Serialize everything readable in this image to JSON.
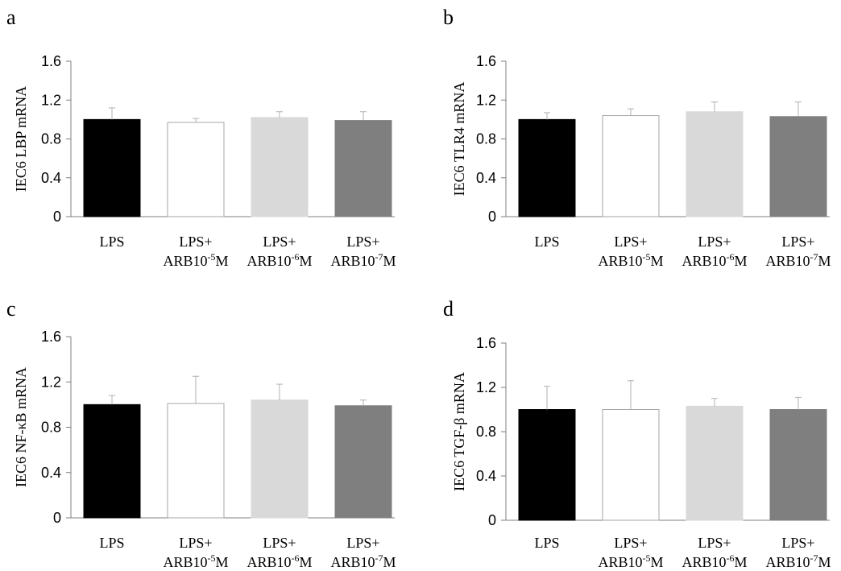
{
  "chart_data": [
    {
      "panel": "a",
      "type": "bar",
      "ylabel": "IEC6 LBP mRNA",
      "ylim": [
        0,
        1.6
      ],
      "yticks": [
        "0",
        "0.4",
        "0.8",
        "1.2",
        "1.6"
      ],
      "categories": [
        {
          "line1": "LPS",
          "line2": "",
          "sup": "",
          "tail": ""
        },
        {
          "line1": "LPS+",
          "line2": "ARB10",
          "sup": "-5",
          "tail": "M"
        },
        {
          "line1": "LPS+",
          "line2": "ARB10",
          "sup": "-6",
          "tail": "M"
        },
        {
          "line1": "LPS+",
          "line2": "ARB10",
          "sup": "-7",
          "tail": "M"
        }
      ],
      "values": [
        1.0,
        0.97,
        1.02,
        0.99
      ],
      "errors": [
        0.12,
        0.04,
        0.06,
        0.09
      ],
      "colors": [
        "#000000",
        "#ffffff",
        "#d9d9d9",
        "#7f7f7f"
      ]
    },
    {
      "panel": "b",
      "type": "bar",
      "ylabel": "IEC6 TLR4 mRNA",
      "ylim": [
        0,
        1.6
      ],
      "yticks": [
        "0",
        "0.4",
        "0.8",
        "1.2",
        "1.6"
      ],
      "categories": [
        {
          "line1": "LPS",
          "line2": "",
          "sup": "",
          "tail": ""
        },
        {
          "line1": "LPS+",
          "line2": "ARB10",
          "sup": "-5",
          "tail": "M"
        },
        {
          "line1": "LPS+",
          "line2": "ARB10",
          "sup": "-6",
          "tail": "M"
        },
        {
          "line1": "LPS+",
          "line2": "ARB10",
          "sup": "-7",
          "tail": "M"
        }
      ],
      "values": [
        1.0,
        1.04,
        1.08,
        1.03
      ],
      "errors": [
        0.07,
        0.07,
        0.1,
        0.15
      ],
      "colors": [
        "#000000",
        "#ffffff",
        "#d9d9d9",
        "#7f7f7f"
      ]
    },
    {
      "panel": "c",
      "type": "bar",
      "ylabel": "IEC6 NF-κB mRNA",
      "ylim": [
        0,
        1.6
      ],
      "yticks": [
        "0",
        "0.4",
        "0.8",
        "1.2",
        "1.6"
      ],
      "categories": [
        {
          "line1": "LPS",
          "line2": "",
          "sup": "",
          "tail": ""
        },
        {
          "line1": "LPS+",
          "line2": "ARB10",
          "sup": "-5",
          "tail": "M"
        },
        {
          "line1": "LPS+",
          "line2": "ARB10",
          "sup": "-6",
          "tail": "M"
        },
        {
          "line1": "LPS+",
          "line2": "ARB10",
          "sup": "-7",
          "tail": "M"
        }
      ],
      "values": [
        1.0,
        1.01,
        1.04,
        0.99
      ],
      "errors": [
        0.08,
        0.24,
        0.14,
        0.05
      ],
      "colors": [
        "#000000",
        "#ffffff",
        "#d9d9d9",
        "#7f7f7f"
      ]
    },
    {
      "panel": "d",
      "type": "bar",
      "ylabel": "IEC6 TGF-β mRNA",
      "ylim": [
        0,
        1.6
      ],
      "yticks": [
        "0",
        "0.4",
        "0.8",
        "1.2",
        "1.6"
      ],
      "categories": [
        {
          "line1": "LPS",
          "line2": "",
          "sup": "",
          "tail": ""
        },
        {
          "line1": "LPS+",
          "line2": "ARB10",
          "sup": "-5",
          "tail": "M"
        },
        {
          "line1": "LPS+",
          "line2": "ARB10",
          "sup": "-6",
          "tail": "M"
        },
        {
          "line1": "LPS+",
          "line2": "ARB10",
          "sup": "-7",
          "tail": "M"
        }
      ],
      "values": [
        1.0,
        1.0,
        1.03,
        1.0
      ],
      "errors": [
        0.21,
        0.26,
        0.07,
        0.11
      ],
      "colors": [
        "#000000",
        "#ffffff",
        "#d9d9d9",
        "#7f7f7f"
      ]
    }
  ]
}
